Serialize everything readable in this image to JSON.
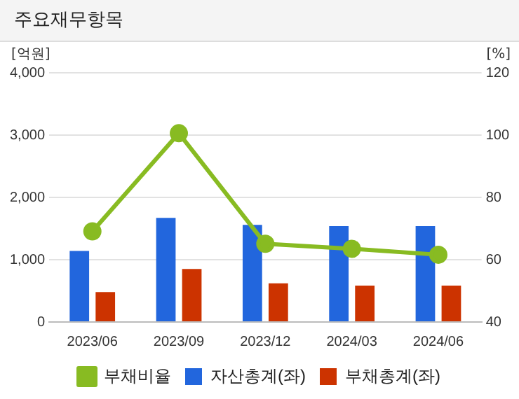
{
  "chart_data": {
    "type": "bar",
    "title": "주요재무항목",
    "ylabel": "[억원]",
    "y2label": "[%]",
    "categories": [
      "2023/06",
      "2023/09",
      "2023/12",
      "2024/03",
      "2024/06"
    ],
    "series": [
      {
        "name": "자산총계(좌)",
        "color": "#2266dd",
        "values": [
          1140,
          1670,
          1560,
          1540,
          1540
        ]
      },
      {
        "name": "부채총계(좌)",
        "color": "#cc3300",
        "values": [
          480,
          850,
          620,
          585,
          585
        ]
      },
      {
        "name": "부채비율",
        "type": "line",
        "axis": "y2",
        "color": "#88bb22",
        "marker": "circle",
        "values": [
          69.1,
          100.6,
          65.1,
          63.5,
          61.6
        ]
      }
    ],
    "ylim": [
      0,
      4000
    ],
    "yticks": [
      {
        "value": 0,
        "label": "0"
      },
      {
        "value": 1000,
        "label": "1,000"
      },
      {
        "value": 2000,
        "label": "2,000"
      },
      {
        "value": 3000,
        "label": "3,000"
      },
      {
        "value": 4000,
        "label": "4,000"
      }
    ],
    "y2lim": [
      40,
      120
    ],
    "y2ticks": [
      40,
      60,
      80,
      100,
      120
    ],
    "grid": "y",
    "legend": "bottom"
  }
}
